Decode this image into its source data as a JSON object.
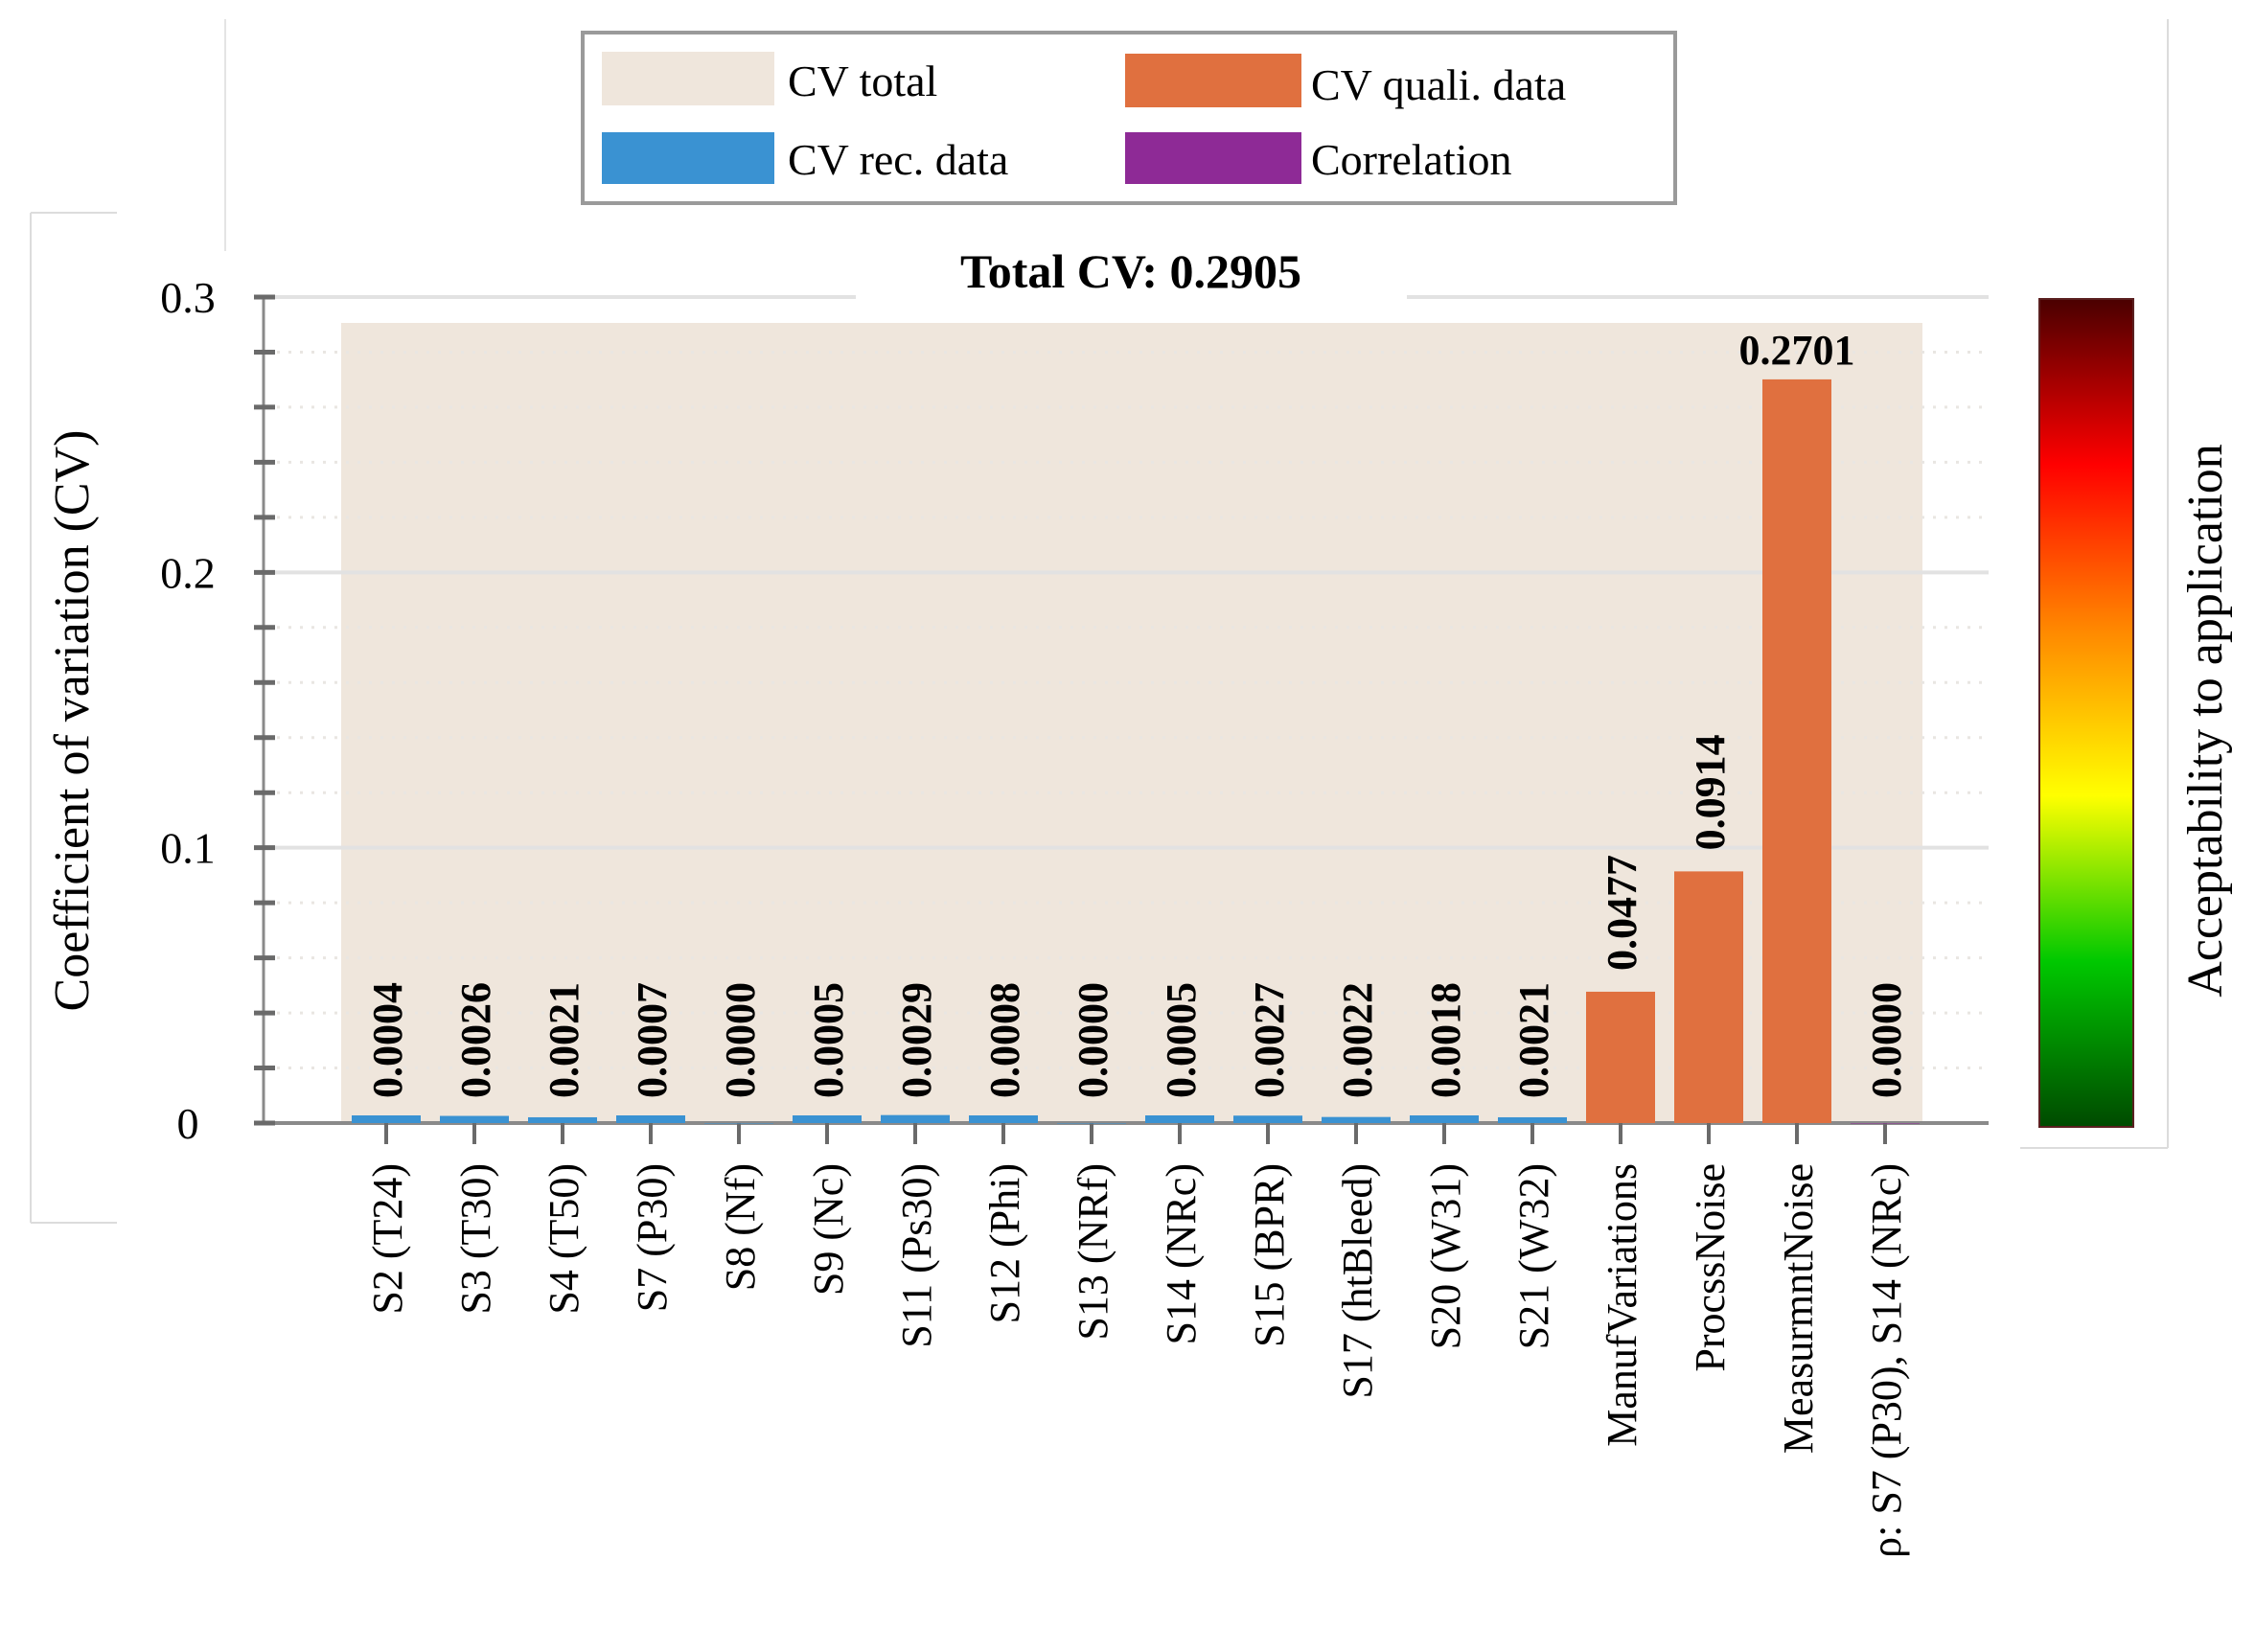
{
  "chart_data": {
    "type": "bar",
    "title": "Total CV: 0.2905",
    "total_cv": 0.2905,
    "ylabel": "Coefficient of variation (CV)",
    "xlabel": "",
    "ylim": [
      0,
      0.3
    ],
    "yticks": [
      0,
      0.1,
      0.2,
      0.3
    ],
    "ytick_labels": [
      "0",
      "0.1",
      "0.2",
      "0.3"
    ],
    "grid": true,
    "legend_position": "top-center",
    "legend": [
      {
        "label": "CV total",
        "color": "#efe6dc"
      },
      {
        "label": "CV quali. data",
        "color": "#e0703f"
      },
      {
        "label": "CV rec. data",
        "color": "#3a92d2"
      },
      {
        "label": "Correlation",
        "color": "#8e2a96"
      }
    ],
    "categories": [
      "S2 (T24)",
      "S3 (T30)",
      "S4 (T50)",
      "S7 (P30)",
      "S8 (Nf)",
      "S9 (Nc)",
      "S11 (Ps30)",
      "S12 (Phi)",
      "S13 (NRf)",
      "S14 (NRc)",
      "S15 (BPR)",
      "S17 (htBleed)",
      "S20 (W31)",
      "S21 (W32)",
      "ManufVariations",
      "ProcssNoise",
      "MeasurmntNoise",
      "ρ: S7 (P30), S14 (NRc)"
    ],
    "values": [
      0.0004,
      0.0026,
      0.0021,
      0.0007,
      0.0,
      0.0005,
      0.0029,
      0.0008,
      0.0,
      0.0005,
      0.0027,
      0.0022,
      0.0018,
      0.0021,
      0.0477,
      0.0914,
      0.2701,
      0.0
    ],
    "value_labels": [
      "0.0004",
      "0.0026",
      "0.0021",
      "0.0007",
      "0.0000",
      "0.0005",
      "0.0029",
      "0.0008",
      "0.0000",
      "0.0005",
      "0.0027",
      "0.0022",
      "0.0018",
      "0.0021",
      "0.0477",
      "0.0914",
      "0.2701",
      "0.0000"
    ],
    "series_type": [
      "rec",
      "rec",
      "rec",
      "rec",
      "rec",
      "rec",
      "rec",
      "rec",
      "rec",
      "rec",
      "rec",
      "rec",
      "rec",
      "rec",
      "quali",
      "quali",
      "quali",
      "correlation"
    ],
    "colorbar": {
      "label": "Acceptability to application",
      "colors": [
        "#004a00",
        "#00c800",
        "#ffff00",
        "#ff8800",
        "#ff0000",
        "#4a0000"
      ]
    }
  }
}
